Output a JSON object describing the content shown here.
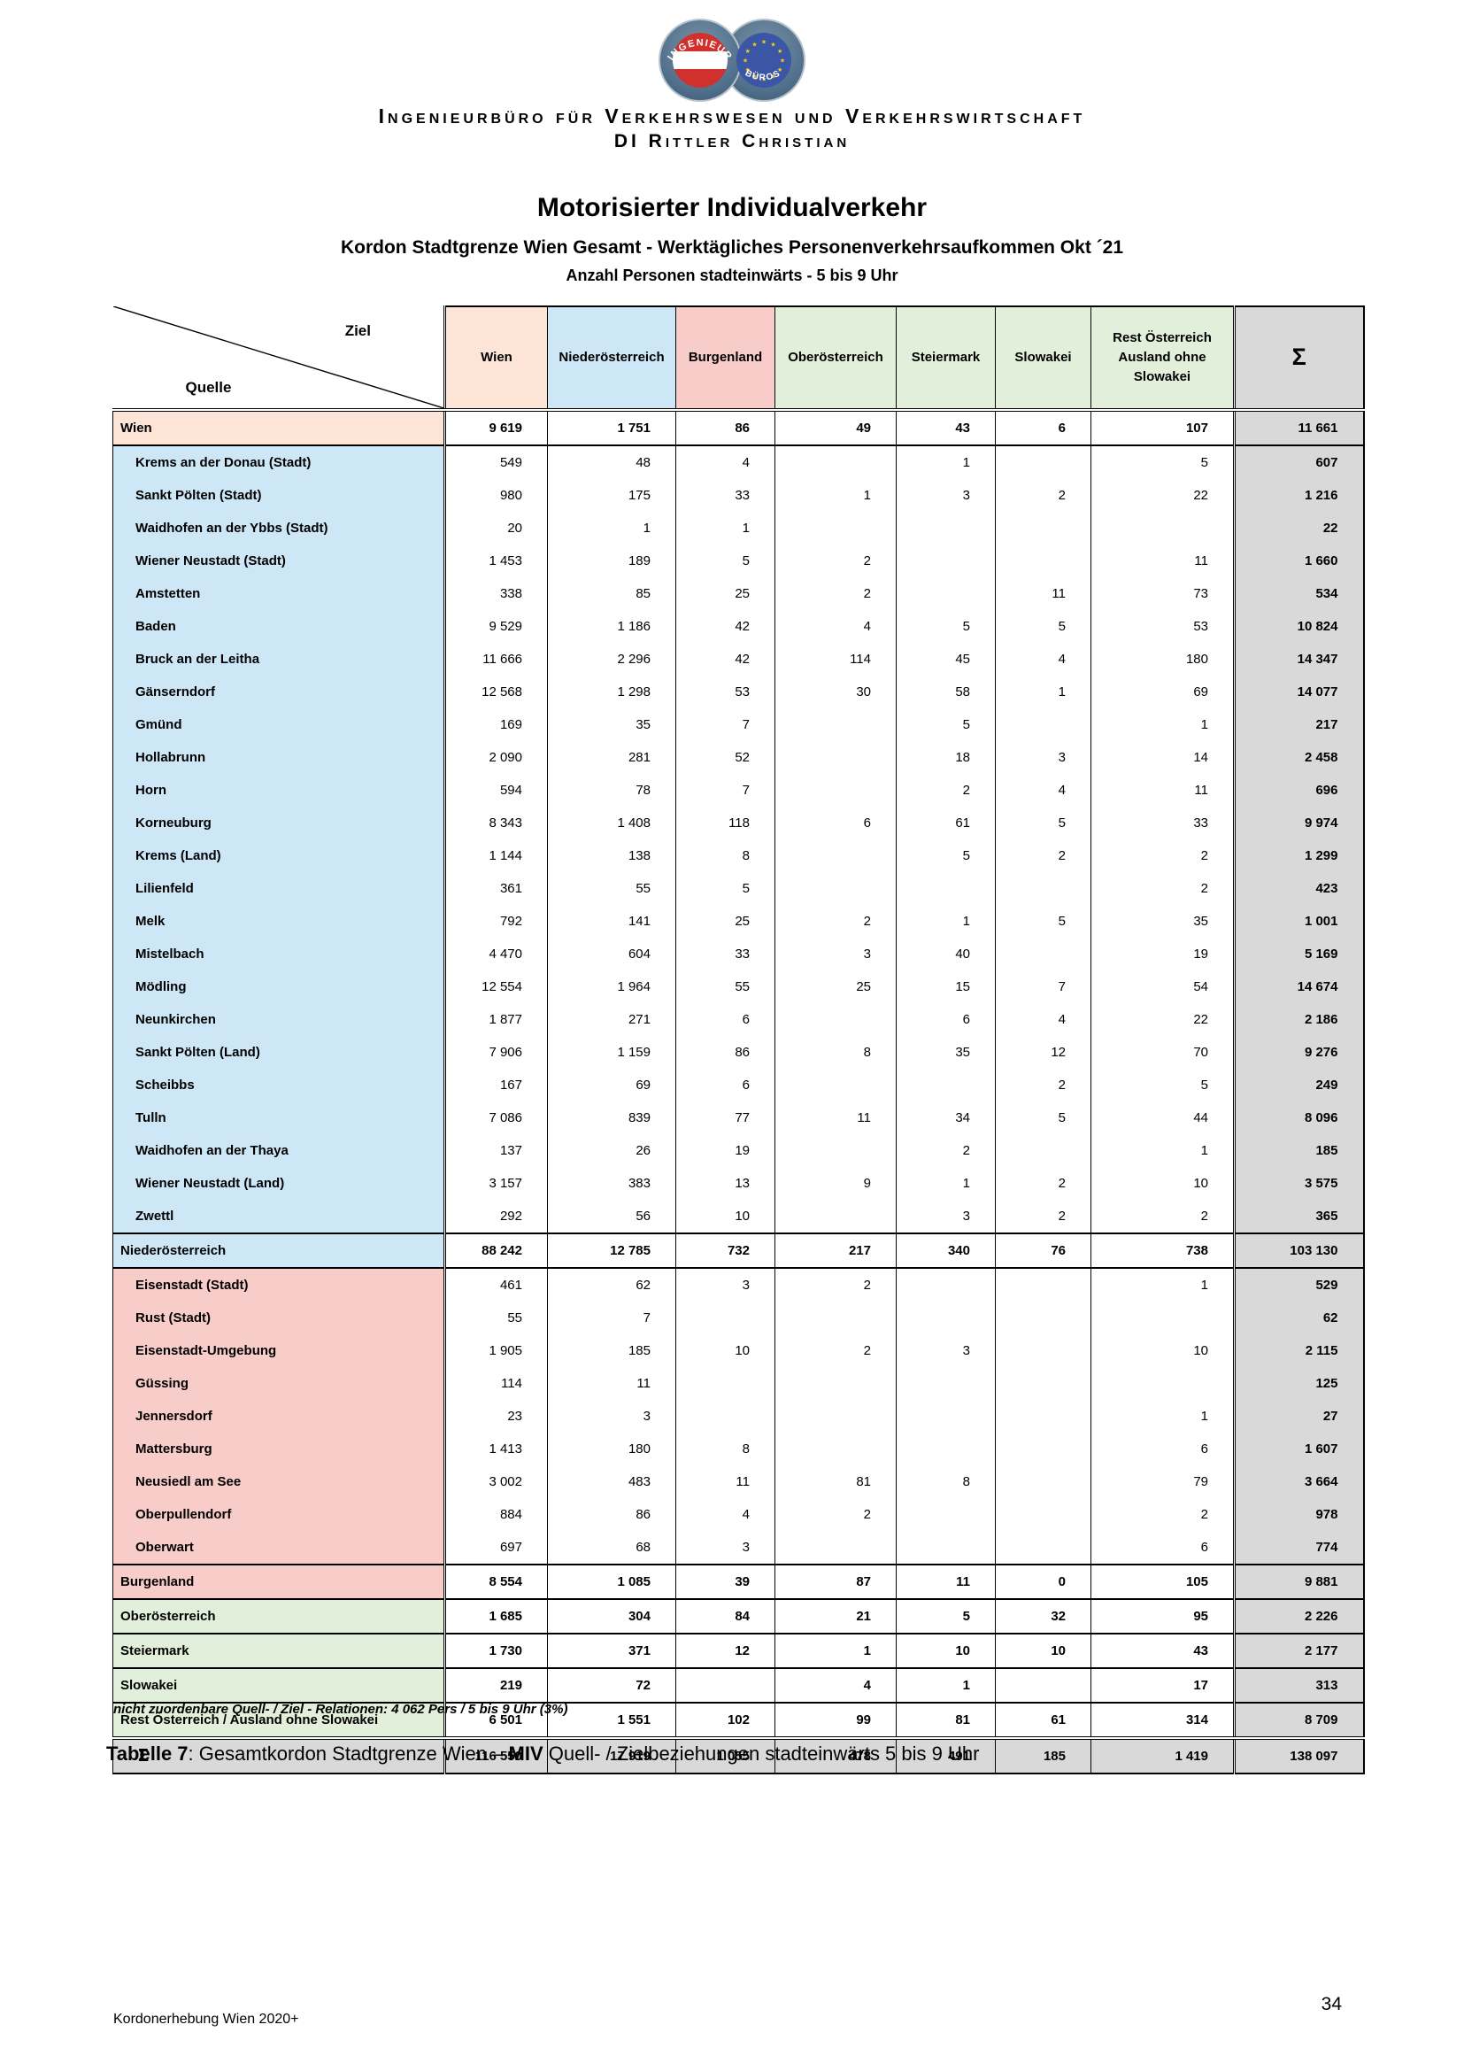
{
  "letterhead": {
    "line1": "Ingenieurbüro für Verkehrswesen und Verkehrswirtschaft",
    "line2": "DI Rittler Christian",
    "logo": {
      "left_badge_text": "INGENIEUR",
      "right_badge_text": "BÜROS"
    }
  },
  "titles": {
    "main": "Motorisierter Individualverkehr",
    "sub": "Kordon Stadtgrenze Wien Gesamt - Werktägliches Personenverkehrsaufkommen Okt ´21",
    "sub2": "Anzahl Personen stadteinwärts - 5 bis 9 Uhr"
  },
  "table": {
    "corner": {
      "ziel": "Ziel",
      "quelle": "Quelle"
    },
    "section_colors": {
      "wien": "#FCE4D6",
      "noe": "#CDE7F6",
      "bgld": "#F8CCC8",
      "other": "#E2EFDA",
      "sum": "#D9D9D9"
    },
    "columns": [
      {
        "label": "Wien",
        "color": "#FCE4D6"
      },
      {
        "label": "Niederösterreich",
        "color": "#CDE7F6"
      },
      {
        "label": "Burgenland",
        "color": "#F8CCC8"
      },
      {
        "label": "Oberösterreich",
        "color": "#E2EFDA"
      },
      {
        "label": "Steiermark",
        "color": "#E2EFDA"
      },
      {
        "label": "Slowakei",
        "color": "#E2EFDA"
      },
      {
        "label": "Rest Österreich\nAusland ohne\nSlowakei",
        "color": "#E2EFDA"
      },
      {
        "label": "Σ",
        "color": "#D9D9D9"
      }
    ],
    "rows": [
      {
        "label": "Wien",
        "type": "subtotal",
        "section": "wien",
        "values": [
          "9 619",
          "1 751",
          "86",
          "49",
          "43",
          "6",
          "107"
        ],
        "sum": "11 661"
      },
      {
        "label": "Krems an der Donau (Stadt)",
        "type": "district",
        "section": "noe",
        "values": [
          "549",
          "48",
          "4",
          "",
          "1",
          "",
          "5"
        ],
        "sum": "607"
      },
      {
        "label": "Sankt Pölten (Stadt)",
        "type": "district",
        "section": "noe",
        "values": [
          "980",
          "175",
          "33",
          "1",
          "3",
          "2",
          "22"
        ],
        "sum": "1 216"
      },
      {
        "label": "Waidhofen an der Ybbs (Stadt)",
        "type": "district",
        "section": "noe",
        "values": [
          "20",
          "1",
          "1",
          "",
          "",
          "",
          ""
        ],
        "sum": "22"
      },
      {
        "label": "Wiener Neustadt (Stadt)",
        "type": "district",
        "section": "noe",
        "values": [
          "1 453",
          "189",
          "5",
          "2",
          "",
          "",
          "11"
        ],
        "sum": "1 660"
      },
      {
        "label": "Amstetten",
        "type": "district",
        "section": "noe",
        "values": [
          "338",
          "85",
          "25",
          "2",
          "",
          "11",
          "73"
        ],
        "sum": "534"
      },
      {
        "label": "Baden",
        "type": "district",
        "section": "noe",
        "values": [
          "9 529",
          "1 186",
          "42",
          "4",
          "5",
          "5",
          "53"
        ],
        "sum": "10 824"
      },
      {
        "label": "Bruck an der Leitha",
        "type": "district",
        "section": "noe",
        "values": [
          "11 666",
          "2 296",
          "42",
          "114",
          "45",
          "4",
          "180"
        ],
        "sum": "14 347"
      },
      {
        "label": "Gänserndorf",
        "type": "district",
        "section": "noe",
        "values": [
          "12 568",
          "1 298",
          "53",
          "30",
          "58",
          "1",
          "69"
        ],
        "sum": "14 077"
      },
      {
        "label": "Gmünd",
        "type": "district",
        "section": "noe",
        "values": [
          "169",
          "35",
          "7",
          "",
          "5",
          "",
          "1"
        ],
        "sum": "217"
      },
      {
        "label": "Hollabrunn",
        "type": "district",
        "section": "noe",
        "values": [
          "2 090",
          "281",
          "52",
          "",
          "18",
          "3",
          "14"
        ],
        "sum": "2 458"
      },
      {
        "label": "Horn",
        "type": "district",
        "section": "noe",
        "values": [
          "594",
          "78",
          "7",
          "",
          "2",
          "4",
          "11"
        ],
        "sum": "696"
      },
      {
        "label": "Korneuburg",
        "type": "district",
        "section": "noe",
        "values": [
          "8 343",
          "1 408",
          "118",
          "6",
          "61",
          "5",
          "33"
        ],
        "sum": "9 974"
      },
      {
        "label": "Krems (Land)",
        "type": "district",
        "section": "noe",
        "values": [
          "1 144",
          "138",
          "8",
          "",
          "5",
          "2",
          "2"
        ],
        "sum": "1 299"
      },
      {
        "label": "Lilienfeld",
        "type": "district",
        "section": "noe",
        "values": [
          "361",
          "55",
          "5",
          "",
          "",
          "",
          "2"
        ],
        "sum": "423"
      },
      {
        "label": "Melk",
        "type": "district",
        "section": "noe",
        "values": [
          "792",
          "141",
          "25",
          "2",
          "1",
          "5",
          "35"
        ],
        "sum": "1 001"
      },
      {
        "label": "Mistelbach",
        "type": "district",
        "section": "noe",
        "values": [
          "4 470",
          "604",
          "33",
          "3",
          "40",
          "",
          "19"
        ],
        "sum": "5 169"
      },
      {
        "label": "Mödling",
        "type": "district",
        "section": "noe",
        "values": [
          "12 554",
          "1 964",
          "55",
          "25",
          "15",
          "7",
          "54"
        ],
        "sum": "14 674"
      },
      {
        "label": "Neunkirchen",
        "type": "district",
        "section": "noe",
        "values": [
          "1 877",
          "271",
          "6",
          "",
          "6",
          "4",
          "22"
        ],
        "sum": "2 186"
      },
      {
        "label": "Sankt Pölten (Land)",
        "type": "district",
        "section": "noe",
        "values": [
          "7 906",
          "1 159",
          "86",
          "8",
          "35",
          "12",
          "70"
        ],
        "sum": "9 276"
      },
      {
        "label": "Scheibbs",
        "type": "district",
        "section": "noe",
        "values": [
          "167",
          "69",
          "6",
          "",
          "",
          "2",
          "5"
        ],
        "sum": "249"
      },
      {
        "label": "Tulln",
        "type": "district",
        "section": "noe",
        "values": [
          "7 086",
          "839",
          "77",
          "11",
          "34",
          "5",
          "44"
        ],
        "sum": "8 096"
      },
      {
        "label": "Waidhofen an der Thaya",
        "type": "district",
        "section": "noe",
        "values": [
          "137",
          "26",
          "19",
          "",
          "2",
          "",
          "1"
        ],
        "sum": "185"
      },
      {
        "label": "Wiener Neustadt (Land)",
        "type": "district",
        "section": "noe",
        "values": [
          "3 157",
          "383",
          "13",
          "9",
          "1",
          "2",
          "10"
        ],
        "sum": "3 575"
      },
      {
        "label": "Zwettl",
        "type": "district",
        "section": "noe",
        "values": [
          "292",
          "56",
          "10",
          "",
          "3",
          "2",
          "2"
        ],
        "sum": "365"
      },
      {
        "label": "Niederösterreich",
        "type": "subtotal",
        "section": "noe",
        "values": [
          "88 242",
          "12 785",
          "732",
          "217",
          "340",
          "76",
          "738"
        ],
        "sum": "103 130"
      },
      {
        "label": "Eisenstadt (Stadt)",
        "type": "district",
        "section": "bgld",
        "values": [
          "461",
          "62",
          "3",
          "2",
          "",
          "",
          "1"
        ],
        "sum": "529"
      },
      {
        "label": "Rust (Stadt)",
        "type": "district",
        "section": "bgld",
        "values": [
          "55",
          "7",
          "",
          "",
          "",
          "",
          ""
        ],
        "sum": "62"
      },
      {
        "label": "Eisenstadt-Umgebung",
        "type": "district",
        "section": "bgld",
        "values": [
          "1 905",
          "185",
          "10",
          "2",
          "3",
          "",
          "10"
        ],
        "sum": "2 115"
      },
      {
        "label": "Güssing",
        "type": "district",
        "section": "bgld",
        "values": [
          "114",
          "11",
          "",
          "",
          "",
          "",
          ""
        ],
        "sum": "125"
      },
      {
        "label": "Jennersdorf",
        "type": "district",
        "section": "bgld",
        "values": [
          "23",
          "3",
          "",
          "",
          "",
          "",
          "1"
        ],
        "sum": "27"
      },
      {
        "label": "Mattersburg",
        "type": "district",
        "section": "bgld",
        "values": [
          "1 413",
          "180",
          "8",
          "",
          "",
          "",
          "6"
        ],
        "sum": "1 607"
      },
      {
        "label": "Neusiedl am See",
        "type": "district",
        "section": "bgld",
        "values": [
          "3 002",
          "483",
          "11",
          "81",
          "8",
          "",
          "79"
        ],
        "sum": "3 664"
      },
      {
        "label": "Oberpullendorf",
        "type": "district",
        "section": "bgld",
        "values": [
          "884",
          "86",
          "4",
          "2",
          "",
          "",
          "2"
        ],
        "sum": "978"
      },
      {
        "label": "Oberwart",
        "type": "district",
        "section": "bgld",
        "values": [
          "697",
          "68",
          "3",
          "",
          "",
          "",
          "6"
        ],
        "sum": "774"
      },
      {
        "label": "Burgenland",
        "type": "subtotal",
        "section": "bgld",
        "values": [
          "8 554",
          "1 085",
          "39",
          "87",
          "11",
          "0",
          "105"
        ],
        "sum": "9 881"
      },
      {
        "label": "Oberösterreich",
        "type": "subtotal",
        "section": "other",
        "values": [
          "1 685",
          "304",
          "84",
          "21",
          "5",
          "32",
          "95"
        ],
        "sum": "2 226"
      },
      {
        "label": "Steiermark",
        "type": "subtotal",
        "section": "other",
        "values": [
          "1 730",
          "371",
          "12",
          "1",
          "10",
          "10",
          "43"
        ],
        "sum": "2 177"
      },
      {
        "label": "Slowakei",
        "type": "subtotal",
        "section": "other",
        "values": [
          "219",
          "72",
          "",
          "4",
          "1",
          "",
          "17"
        ],
        "sum": "313"
      },
      {
        "label": "Rest Österreich / Ausland ohne Slowakei",
        "type": "subtotal",
        "section": "other",
        "values": [
          "6 501",
          "1 551",
          "102",
          "99",
          "81",
          "61",
          "314"
        ],
        "sum": "8 709"
      },
      {
        "label": "Σ",
        "type": "total",
        "section": "sum",
        "values": [
          "116 550",
          "17 919",
          "1 055",
          "478",
          "491",
          "185",
          "1 419"
        ],
        "sum": "138 097"
      }
    ]
  },
  "note": "nicht zuordenbare Quell- / Ziel - Relationen: 4 062 Pers / 5 bis 9 Uhr (3%)",
  "caption": {
    "bold1": "Tabelle 7",
    "normal1": ": Gesamtkordon Stadtgrenze Wien – ",
    "bold2": "MIV",
    "normal2": " Quell- / Zielbeziehungen stadteinwärts 5 bis 9 Uhr"
  },
  "footer": {
    "left": "Kordonerhebung Wien 2020+",
    "page_number": "34"
  }
}
